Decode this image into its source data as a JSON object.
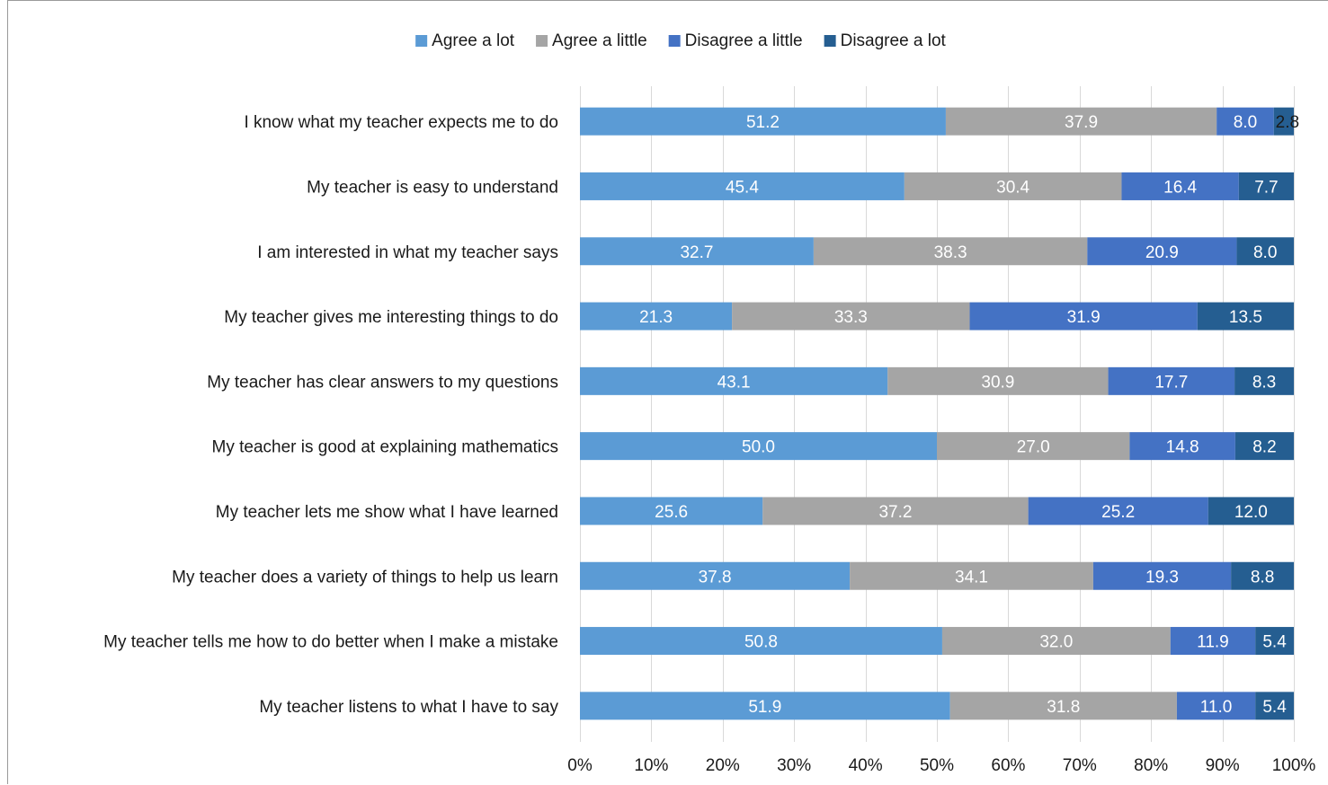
{
  "chart_data": {
    "type": "bar",
    "orientation": "horizontal",
    "stacked": "percent",
    "categories": [
      "I know what my teacher expects me to do",
      "My teacher is easy to understand",
      "I am interested in what my teacher says",
      "My teacher gives me interesting things to do",
      "My teacher has clear answers to my questions",
      "My teacher is good at explaining mathematics",
      "My teacher lets me show what I have learned",
      "My teacher does a variety of things to help us learn",
      "My teacher tells me how to do better when I make a mistake",
      "My teacher listens to what I have to say"
    ],
    "series": [
      {
        "name": "Agree a lot",
        "color": "#5b9bd5",
        "label_color": "#ffffff",
        "values": [
          51.2,
          45.4,
          32.7,
          21.3,
          43.1,
          50.0,
          25.6,
          37.8,
          50.8,
          51.9
        ],
        "labels": [
          "51.2",
          "45.4",
          "32.7",
          "21.3",
          "43.1",
          "50.0",
          "25.6",
          "37.8",
          "50.8",
          "51.9"
        ]
      },
      {
        "name": "Agree a little",
        "color": "#a5a5a5",
        "label_color": "#ffffff",
        "values": [
          37.9,
          30.4,
          38.3,
          33.3,
          30.9,
          27.0,
          37.2,
          34.1,
          32.0,
          31.8
        ],
        "labels": [
          "37.9",
          "30.4",
          "38.3",
          "33.3",
          "30.9",
          "27.0",
          "37.2",
          "34.1",
          "32.0",
          "31.8"
        ]
      },
      {
        "name": "Disagree a little",
        "color": "#4472c4",
        "label_color": "#ffffff",
        "values": [
          8.0,
          16.4,
          20.9,
          31.9,
          17.7,
          14.8,
          25.2,
          19.3,
          11.9,
          11.0
        ],
        "labels": [
          "8.0",
          "16.4",
          "20.9",
          "31.9",
          "17.7",
          "14.8",
          "25.2",
          "19.3",
          "11.9",
          "11.0"
        ]
      },
      {
        "name": "Disagree a lot",
        "color": "#255e91",
        "label_color": "#ffffff",
        "values": [
          2.8,
          7.7,
          8.0,
          13.5,
          8.3,
          8.2,
          12.0,
          8.8,
          5.4,
          5.4
        ],
        "labels": [
          "2.8",
          "7.7",
          "8.0",
          "13.5",
          "8.3",
          "8.2",
          "12.0",
          "8.8",
          "5.4",
          "5.4"
        ]
      }
    ],
    "x_ticks": [
      "0%",
      "10%",
      "20%",
      "30%",
      "40%",
      "50%",
      "60%",
      "70%",
      "80%",
      "90%",
      "100%"
    ],
    "xlim": [
      0,
      100
    ],
    "grid": "vertical",
    "legend": "top-center",
    "gridline_color": "#d9d9d9",
    "small_label_color": "#1a1a1a"
  }
}
